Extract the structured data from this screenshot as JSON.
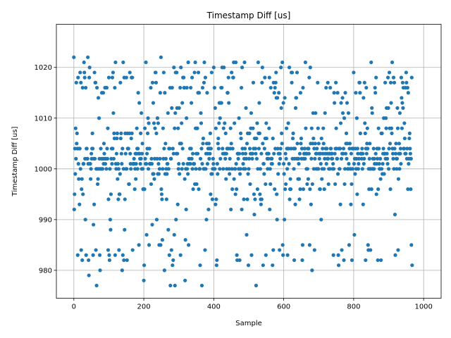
{
  "chart_data": {
    "type": "scatter",
    "title": "Timestamp Diff [us]",
    "xlabel": "Sample",
    "ylabel": "Timestamp Diff [us]",
    "xlim": [
      -50,
      1050
    ],
    "ylim": [
      974.5,
      1028.5
    ],
    "xticks": [
      0,
      200,
      400,
      600,
      800,
      1000
    ],
    "yticks": [
      980,
      990,
      1000,
      1010,
      1020
    ],
    "grid": true,
    "marker_color": "#1f77b4",
    "n_points": 1001,
    "x": "sample index 0 to 1000, step 1",
    "y": [
      1022,
      992,
      995,
      1004,
      999,
      1008,
      1002,
      1017,
      1005,
      1007,
      1004,
      983,
      1018,
      1001,
      998,
      1004,
      993,
      1004,
      1019,
      1000,
      1017,
      984,
      996,
      998,
      982,
      1016,
      995,
      1001,
      1001,
      1021,
      1019,
      1018,
      1002,
      990,
      1016,
      983,
      1004,
      1004,
      1002,
      1002,
      1022,
      1001,
      982,
      979,
      1018,
      1020,
      1001,
      1001,
      998,
      1000,
      1003,
      1002,
      1004,
      1007,
      1004,
      983,
      989,
      1002,
      993,
      1019,
      1002,
      1017,
      1017,
      984,
      1000,
      977,
      1016,
      1000,
      997,
      998,
      1014,
      1000,
      1010,
      1002,
      983,
      980,
      1000,
      1004,
      1000,
      1002,
      1015,
      1000,
      1000,
      1002,
      1015,
      1001,
      1005,
      1003,
      1002,
      1016,
      1001,
      1002,
      1016,
      1000,
      1016,
      1004,
      1002,
      1008,
      984,
      994,
      1018,
      983,
      982,
      1000,
      990,
      988,
      995,
      1002,
      1004,
      1001,
      1018,
      1004,
      1019,
      1011,
      1002,
      1007,
      1006,
      1016,
      983,
      1021,
      1001,
      1000,
      1003,
      1006,
      1007,
      998,
      1001,
      994,
      1000,
      984,
      995,
      995,
      999,
      1017,
      1006,
      1007,
      1003,
      1001,
      980,
      1004,
      983,
      1021,
      1000,
      982,
      1018,
      988,
      994,
      1007,
      1003,
      1000,
      1018,
      1000,
      982,
      1007,
      1004,
      1004,
      1004,
      997,
      997,
      1007,
      1019,
      1003,
      1001,
      1000,
      1006,
      1018,
      1007,
      1018,
      984,
      1001,
      1001,
      1001,
      1002,
      1001,
      996,
      1000,
      1003,
      998,
      1001,
      1003,
      1008,
      1004,
      1000,
      1004,
      1015,
      1003,
      985,
      1013,
      1003,
      1002,
      1001,
      1007,
      1002,
      1011,
      1000,
      1003,
      1005,
      1000,
      996,
      996,
      978,
      981,
      996,
      1008,
      1002,
      1001,
      1021,
      1001,
      987,
      1003,
      1004,
      1007,
      1010,
      1000,
      1009,
      985,
      1004,
      1001,
      1001,
      1001,
      1016,
      997,
      1002,
      1001,
      989,
      1017,
      999,
      1013,
      999,
      1009,
      998,
      1002,
      1008,
      1019,
      1019,
      1017,
      1007,
      990,
      1002,
      1010,
      999,
      1009,
      1001,
      999,
      985,
      1000,
      1002,
      1015,
      985,
      1022,
      996,
      995,
      994,
      986,
      1000,
      1008,
      1002,
      1019,
      1004,
      980,
      1015,
      999,
      1005,
      1002,
      1000,
      994,
      999,
      1001,
      1001,
      1011,
      988,
      1000,
      1004,
      983,
      1004,
      1016,
      977,
      1002,
      1002,
      984,
      1012,
      1016,
      981,
      1004,
      982,
      1003,
      1020,
      987,
      1008,
      977,
      1011,
      1019,
      990,
      1003,
      1019,
      1012,
      1003,
      993,
      1008,
      1000,
      1001,
      1012,
      999,
      1005,
      1016,
      983,
      1020,
      1005,
      1009,
      1000,
      1013,
      1004,
      1018,
      1001,
      1018,
      1016,
      1016,
      998,
      978,
      986,
      1000,
      992,
      1010,
      1016,
      1000,
      1001,
      999,
      1021,
      985,
      1002,
      1001,
      1002,
      1004,
      1001,
      1016,
      1004,
      1013,
      1002,
      1018,
      1000,
      1003,
      996,
      1001,
      1001,
      1001,
      1019,
      997,
      1021,
      1008,
      1000,
      1003,
      997,
      1008,
      1008,
      1003,
      1015,
      1019,
      996,
      1015,
      1000,
      1000,
      981,
      1002,
      1011,
      1009,
      1004,
      977,
      1001,
      1016,
      1005,
      1006,
      1000,
      1017,
      1021,
      1000,
      984,
      1018,
      1000,
      1003,
      990,
      1005,
      1015,
      1001,
      1003,
      1004,
      992,
      1005,
      1002,
      1004,
      1003,
      1007,
      995,
      1004,
      999,
      1019,
      999,
      994,
      1000,
      1002,
      1001,
      1020,
      1000,
      1016,
      1000,
      1012,
      993,
      1008,
      994,
      981,
      982,
      1001,
      999,
      1005,
      1006,
      1004,
      1009,
      1013,
      1000,
      1010,
      1002,
      1013,
      1016,
      1013,
      1016,
      1020,
      1004,
      1003,
      1000,
      1008,
      1020,
      1003,
      1009,
      1003,
      1002,
      1007,
      998,
      1003,
      1000,
      1004,
      1015,
      1015,
      1004,
      1018,
      1013,
      1000,
      999,
      1002,
      1004,
      1008,
      992,
      1005,
      1019,
      1000,
      996,
      1004,
      1018,
      1018,
      1021,
      998,
      1009,
      1000,
      1000,
      995,
      1021,
      1001,
      996,
      983,
      982,
      1003,
      1003,
      1002,
      1000,
      1010,
      1003,
      982,
      999,
      1000,
      1007,
      1006,
      1016,
      992,
      1020,
      1004,
      1003,
      1001,
      1000,
      994,
      1002,
      1021,
      1004,
      1000,
      1003,
      1012,
      1002,
      987,
      1005,
      994,
      1007,
      999,
      981,
      1000,
      1002,
      1007,
      1004,
      997,
      1003,
      1008,
      1011,
      983,
      1003,
      1002,
      1003,
      1008,
      1017,
      1004,
      995,
      991,
      1006,
      994,
      1004,
      1003,
      977,
      1006,
      1002,
      1009,
      996,
      1000,
      1021,
      1007,
      1004,
      1013,
      1007,
      995,
      1000,
      994,
      993,
      1003,
      994,
      1017,
      1020,
      1005,
      981,
      1001,
      1001,
      999,
      1004,
      1018,
      1006,
      997,
      983,
      1009,
      1006,
      1003,
      1002,
      1000,
      1003,
      1002,
      1003,
      1008,
      1018,
      992,
      1000,
      997,
      1016,
      1002,
      1001,
      1002,
      1001,
      981,
      1006,
      984,
      1017,
      1003,
      1015,
      996,
      1016,
      1004,
      1017,
      1019,
      1014,
      995,
      990,
      1014,
      1004,
      999,
      1003,
      1015,
      1001,
      984,
      1003,
      1002,
      1004,
      1020,
      1012,
      1007,
      1005,
      1021,
      985,
      983,
      1013,
      1001,
      999,
      990,
      1014,
      996,
      1003,
      997,
      1002,
      1008,
      1004,
      1000,
      983,
      1004,
      1009,
      1004,
      1001,
      1020,
      994,
      996,
      998,
      996,
      1004,
      1019,
      1017,
      1019,
      1002,
      1006,
      1007,
      1004,
      1000,
      982,
      1002,
      1004,
      993,
      1012,
      1014,
      1014,
      1002,
      1019,
      1005,
      1002,
      998,
      1002,
      1001,
      998,
      994,
      1003,
      996,
      1015,
      1005,
      1006,
      1002,
      1004,
      982,
      985,
      1016,
      996,
      1002,
      1003,
      1003,
      1004,
      1002,
      1021,
      1008,
      1003,
      1000,
      1003,
      997,
      1000,
      1004,
      998,
      1004,
      1003,
      1018,
      985,
      996,
      1020,
      1005,
      993,
      1002,
      1008,
      980,
      997,
      1005,
      1011,
      1006,
      1000,
      1004,
      984,
      1002,
      1005,
      1011,
      1003,
      1000,
      1003,
      1004,
      1000,
      1017,
      1008,
      1000,
      1005,
      1003,
      1002,
      996,
      996,
      1003,
      1001,
      990,
      1006,
      998,
      1000,
      1004,
      1003,
      1008,
      1005,
      1000,
      996,
      1002,
      1011,
      1003,
      1004,
      1016,
      1001,
      1004,
      1003,
      1002,
      1017,
      1002,
      997,
      1000,
      1003,
      1003,
      1000,
      1016,
      1004,
      1004,
      1003,
      1002,
      1003,
      1002,
      1000,
      1001,
      983,
      1000,
      1015,
      1013,
      1003,
      997,
      1004,
      1017,
      1008,
      1004,
      1002,
      1002,
      1015,
      999,
      983,
      981,
      1004,
      1000,
      1000,
      1004,
      993,
      1009,
      1013,
      1002,
      984,
      1003,
      1014,
      1011,
      1003,
      1004,
      982,
      1010,
      997,
      1000,
      1015,
      1003,
      1005,
      1007,
      1002,
      1013,
      1005,
      1000,
      1000,
      1011,
      1001,
      985,
      1004,
      1005,
      1000,
      1000,
      993,
      1003,
      997,
      982,
      1004,
      1000,
      1004,
      1004,
      1019,
      1001,
      987,
      1002,
      999,
      1004,
      1015,
      1000,
      1002,
      1010,
      995,
      1004,
      1003,
      1000,
      1001,
      1002,
      1017,
      1017,
      1015,
      1007,
      1003,
      1003,
      1003,
      1002,
      1004,
      1000,
      1003,
      993,
      1014,
      1001,
      1002,
      1017,
      1009,
      1007,
      982,
      1004,
      1016,
      1003,
      1005,
      1008,
      1004,
      985,
      984,
      1000,
      996,
      1002,
      1005,
      1000,
      984,
      1000,
      1021,
      996,
      1012,
      1011,
      1000,
      1002,
      1000,
      1004,
      1000,
      1002,
      1001,
      1016,
      1015,
      1003,
      1018,
      995,
      1001,
      1004,
      1002,
      982,
      996,
      1008,
      1004,
      1001,
      1000,
      1000,
      1002,
      998,
      982,
      1007,
      1000,
      1007,
      999,
      1001,
      1003,
      1004,
      1010,
      999,
      1003,
      1003,
      1017,
      1002,
      1010,
      1008,
      1012,
      1003,
      1002,
      1001,
      1018,
      1012,
      1000,
      1004,
      1019,
      1008,
      1005,
      996,
      1017,
      1013,
      1008,
      1007,
      1021,
      1004,
      1003,
      1002,
      1018,
      1000,
      1017,
      1004,
      991,
      983,
      1003,
      1005,
      1002,
      1000,
      1002,
      1012,
      1008,
      984,
      998,
      1003,
      1005,
      1000,
      1011,
      1003,
      1004,
      1001,
      1018,
      1014,
      1008,
      1013,
      1017,
      1012,
      1016,
      1004,
      1004,
      1009,
      1006,
      1003,
      1016,
      1003,
      1019,
      1017,
      1002,
      1004,
      1016,
      996,
      1015,
      1001,
      1002,
      1006,
      1007,
      1004,
      1003,
      996,
      1002,
      985,
      1018,
      981
    ]
  }
}
